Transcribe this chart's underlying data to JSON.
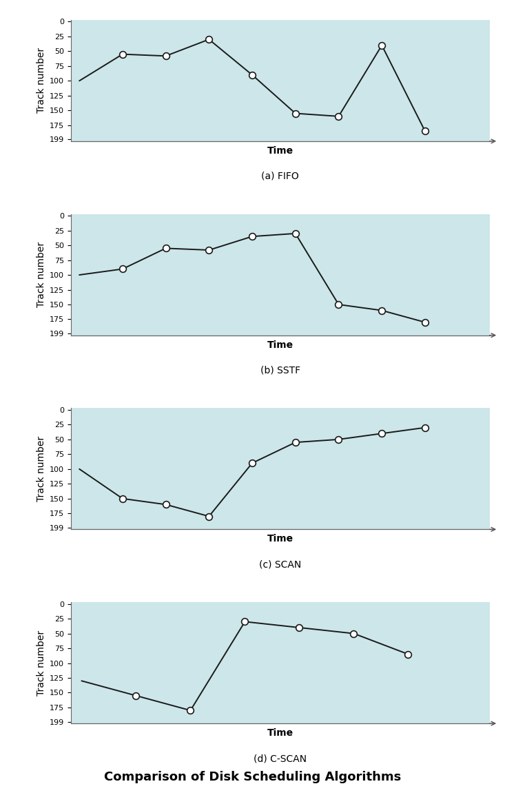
{
  "subplots": [
    {
      "label": "(a) FIFO",
      "tracks": [
        100,
        55,
        58,
        30,
        90,
        155,
        160,
        40,
        185
      ],
      "has_first_marker": false
    },
    {
      "label": "(b) SSTF",
      "tracks": [
        100,
        90,
        55,
        58,
        35,
        30,
        150,
        160,
        180
      ],
      "has_first_marker": false
    },
    {
      "label": "(c) SCAN",
      "tracks": [
        100,
        150,
        160,
        180,
        90,
        55,
        50,
        40,
        30
      ],
      "has_first_marker": false
    },
    {
      "label": "(d) C-SCAN",
      "tracks": [
        130,
        155,
        180,
        30,
        40,
        50,
        85
      ],
      "has_first_marker": false
    }
  ],
  "yticks": [
    0,
    25,
    50,
    75,
    100,
    125,
    150,
    175,
    199
  ],
  "ymin": 0,
  "ymax": 199,
  "ylabel": "Track number",
  "xlabel": "Time",
  "bg_color": "#cce6e9",
  "line_color": "#1a1a1a",
  "marker_facecolor": "white",
  "marker_edgecolor": "#1a1a1a",
  "marker_size": 7,
  "marker_linewidth": 1.2,
  "line_width": 1.4,
  "title": "Comparison of Disk Scheduling Algorithms",
  "title_fontsize": 13,
  "axis_label_fontsize": 10,
  "tick_fontsize": 8,
  "sublabel_fontsize": 10
}
